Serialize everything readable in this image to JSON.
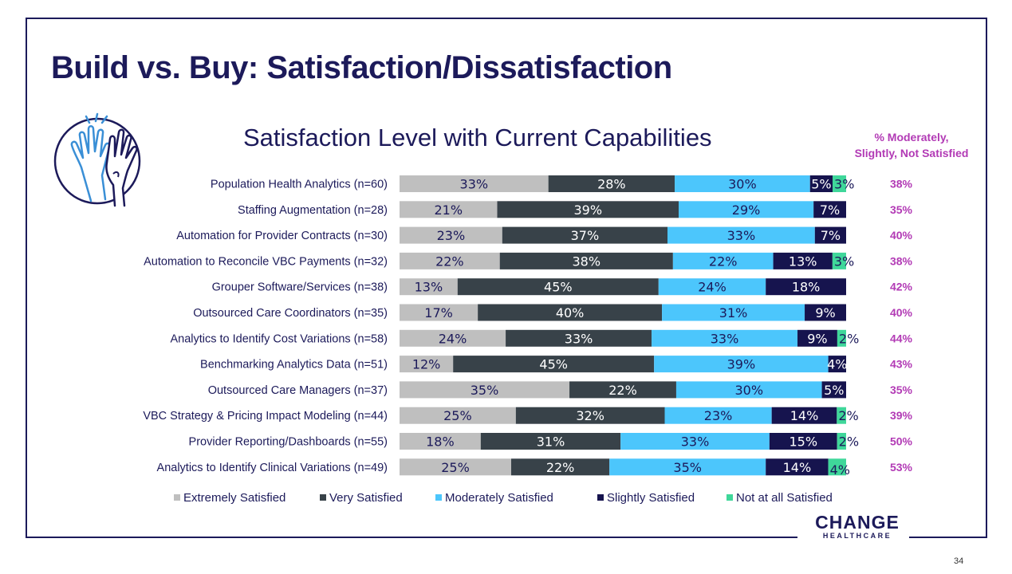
{
  "slide": {
    "title": "Build vs. Buy: Satisfaction/Dissatisfaction",
    "page_number": "34"
  },
  "logo": {
    "main": "CHANGE",
    "sub": "HEALTHCARE"
  },
  "icon": "high-five-hands-icon",
  "colors": {
    "navy": "#1c1a5a",
    "accent_purple": "#b23ab5",
    "extremely": "#bfbfbf",
    "very": "#384249",
    "moderately": "#4cc6fc",
    "slightly": "#16144e",
    "not_at_all": "#3fd79a"
  },
  "chart_data": {
    "type": "bar",
    "orientation": "horizontal-stacked-100",
    "title": "Satisfaction Level with Current Capabilities",
    "side_column_header": "% Moderately, Slightly, Not Satisfied",
    "legend_position": "bottom",
    "categories": [
      "Population Health Analytics (n=60)",
      "Staffing Augmentation (n=28)",
      "Automation for Provider Contracts (n=30)",
      "Automation to Reconcile VBC Payments (n=32)",
      "Grouper Software/Services (n=38)",
      "Outsourced Care Coordinators (n=35)",
      "Analytics to Identify Cost Variations (n=58)",
      "Benchmarking Analytics Data (n=51)",
      "Outsourced Care Managers (n=37)",
      "VBC Strategy & Pricing Impact Modeling (n=44)",
      "Provider Reporting/Dashboards (n=55)",
      "Analytics to Identify Clinical Variations (n=49)"
    ],
    "series": [
      {
        "name": "Extremely Satisfied",
        "color": "#bfbfbf",
        "values": [
          33,
          21,
          23,
          22,
          13,
          17,
          24,
          12,
          35,
          25,
          18,
          25
        ]
      },
      {
        "name": "Very Satisfied",
        "color": "#384249",
        "values": [
          28,
          39,
          37,
          38,
          45,
          40,
          33,
          45,
          22,
          32,
          31,
          22
        ]
      },
      {
        "name": "Moderately Satisfied",
        "color": "#4cc6fc",
        "values": [
          30,
          29,
          33,
          22,
          24,
          31,
          33,
          39,
          30,
          23,
          33,
          35
        ]
      },
      {
        "name": "Slightly Satisfied",
        "color": "#16144e",
        "values": [
          5,
          7,
          7,
          13,
          18,
          9,
          9,
          4,
          5,
          14,
          15,
          14
        ]
      },
      {
        "name": "Not at all Satisfied",
        "color": "#3fd79a",
        "values": [
          3,
          0,
          0,
          3,
          0,
          0,
          2,
          0,
          0,
          2,
          2,
          4
        ]
      }
    ],
    "side_values": [
      "38%",
      "35%",
      "40%",
      "38%",
      "42%",
      "40%",
      "44%",
      "43%",
      "35%",
      "39%",
      "50%",
      "53%"
    ]
  }
}
